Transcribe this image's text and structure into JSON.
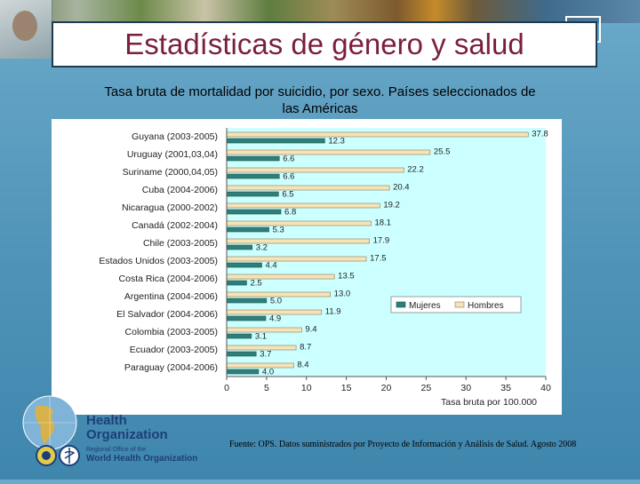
{
  "slide": {
    "title": "Estadísticas de género y salud",
    "subtitle": "Tasa bruta de mortalidad por suicidio, por sexo. Países seleccionados de las Américas",
    "source": "Fuente: OPS. Datos suministrados por Proyecto de Información y Análisis de Salud. Agosto 2008"
  },
  "logo": {
    "line1": "Health",
    "line2": "Organization",
    "line3": "Regional Office of the",
    "line4": "World Health Organization"
  },
  "colors": {
    "title": "#7a1f3d",
    "mujeres": "#2e7f7a",
    "hombres": "#f6e3b8",
    "plot_bg": "#ccffff",
    "logo_text": "#1d3f78"
  },
  "chart_data": {
    "type": "bar",
    "orientation": "horizontal",
    "xlabel": "Tasa bruta por 100.000",
    "xlim": [
      0,
      40
    ],
    "xticks": [
      0,
      5,
      10,
      15,
      20,
      25,
      30,
      35,
      40
    ],
    "legend": "right",
    "categories": [
      "Guyana (2003-2005)",
      "Uruguay (2001,03,04)",
      "Suriname (2000,04,05)",
      "Cuba (2004-2006)",
      "Nicaragua (2000-2002)",
      "Canadá (2002-2004)",
      "Chile (2003-2005)",
      "Estados Unidos (2003-2005)",
      "Costa Rica (2004-2006)",
      "Argentina (2004-2006)",
      "El Salvador (2004-2006)",
      "Colombia (2003-2005)",
      "Ecuador (2003-2005)",
      "Paraguay (2004-2006)"
    ],
    "series": [
      {
        "name": "Hombres",
        "values": [
          37.8,
          25.5,
          22.2,
          20.4,
          19.2,
          18.1,
          17.9,
          17.5,
          13.5,
          13.0,
          11.9,
          9.4,
          8.7,
          8.4
        ],
        "labels": [
          "37.8",
          "25.5",
          "22.2",
          "20.4",
          "19.2",
          "18.1",
          "17.9",
          "17.5",
          "13.5",
          "13.0",
          "11.9",
          "9.4",
          "8.7",
          "8.4"
        ]
      },
      {
        "name": "Mujeres",
        "values": [
          12.3,
          6.6,
          6.6,
          6.5,
          6.8,
          5.3,
          3.2,
          4.4,
          2.5,
          5.0,
          4.9,
          3.1,
          3.7,
          4.0
        ],
        "labels": [
          "12.3",
          "6.6",
          "6.6",
          "6.5",
          "6.8",
          "5.3",
          "3.2",
          "4.4",
          "2.5",
          "5.0",
          "4.9",
          "3.1",
          "3.7",
          "4.0"
        ]
      }
    ]
  }
}
